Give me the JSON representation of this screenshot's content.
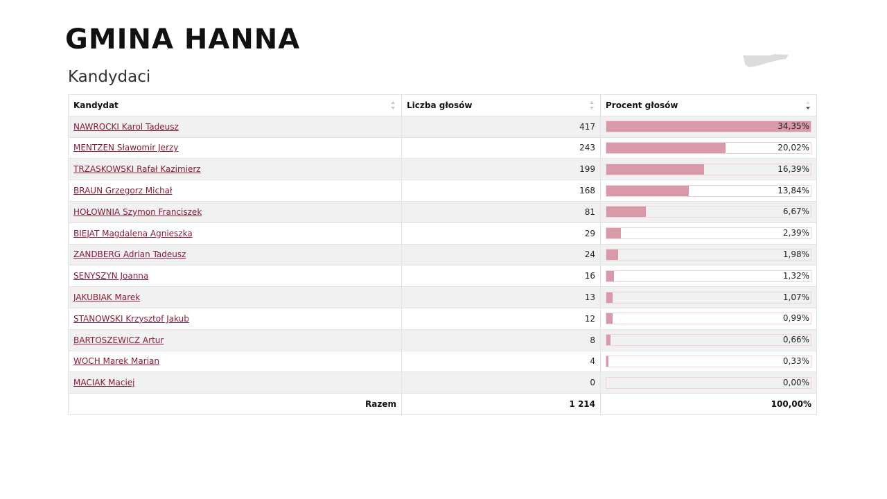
{
  "page": {
    "title": "GMINA HANNA",
    "section_title": "Kandydaci"
  },
  "table": {
    "columns": [
      "Kandydat",
      "Liczba głosów",
      "Procent głosów"
    ],
    "rows": [
      {
        "name": "NAWROCKI Karol Tadeusz",
        "votes": "417",
        "percent": "34,35%",
        "share": 34.35
      },
      {
        "name": "MENTZEN Sławomir Jerzy",
        "votes": "243",
        "percent": "20,02%",
        "share": 20.02
      },
      {
        "name": "TRZASKOWSKI Rafał Kazimierz",
        "votes": "199",
        "percent": "16,39%",
        "share": 16.39
      },
      {
        "name": "BRAUN Grzegorz Michał",
        "votes": "168",
        "percent": "13,84%",
        "share": 13.84
      },
      {
        "name": "HOŁOWNIA Szymon Franciszek",
        "votes": "81",
        "percent": "6,67%",
        "share": 6.67
      },
      {
        "name": "BIEJAT Magdalena Agnieszka",
        "votes": "29",
        "percent": "2,39%",
        "share": 2.39
      },
      {
        "name": "ZANDBERG Adrian Tadeusz",
        "votes": "24",
        "percent": "1,98%",
        "share": 1.98
      },
      {
        "name": "SENYSZYN Joanna",
        "votes": "16",
        "percent": "1,32%",
        "share": 1.32
      },
      {
        "name": "JAKUBIAK Marek",
        "votes": "13",
        "percent": "1,07%",
        "share": 1.07
      },
      {
        "name": "STANOWSKI Krzysztof Jakub",
        "votes": "12",
        "percent": "0,99%",
        "share": 0.99
      },
      {
        "name": "BARTOSZEWICZ Artur",
        "votes": "8",
        "percent": "0,66%",
        "share": 0.66
      },
      {
        "name": "WOCH Marek Marian",
        "votes": "4",
        "percent": "0,33%",
        "share": 0.33
      },
      {
        "name": "MACIAK Maciej",
        "votes": "0",
        "percent": "0,00%",
        "share": 0.0
      }
    ],
    "total": {
      "label": "Razem",
      "votes": "1 214",
      "percent": "100,00%"
    },
    "bar_scale_max": 34.35,
    "sorted_by": "Procent głosów",
    "sort_direction": "descending"
  },
  "colors": {
    "link": "#8a1c35",
    "bar": "#d89aa8",
    "row_alt": "#f1f1f1"
  }
}
